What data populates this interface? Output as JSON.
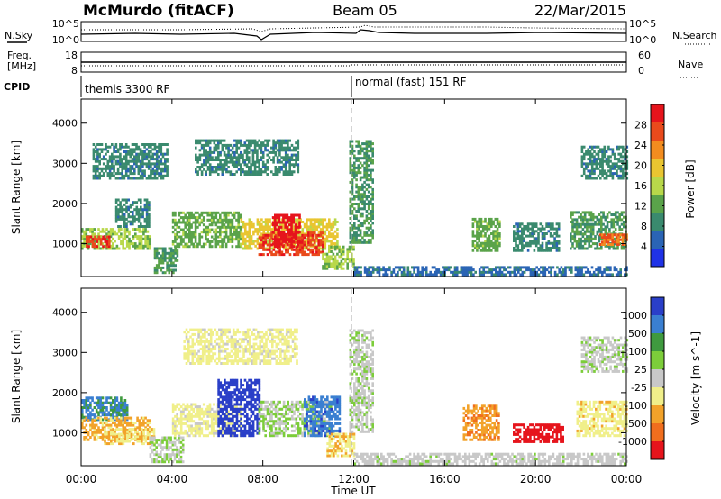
{
  "header": {
    "station": "McMurdo (fitACF)",
    "beam": "Beam 05",
    "date": "22/Mar/2015"
  },
  "noise_panel": {
    "left_label": "N.Sky",
    "right_label": "N.Search",
    "y_top_tick": "10^5",
    "y_bottom_tick": "10^0"
  },
  "freq_panel": {
    "left_label_1": "Freq.",
    "left_label_2": "[MHz]",
    "right_label": "Nave",
    "left_ticks": [
      "18",
      "8"
    ],
    "right_ticks": [
      "60",
      "0"
    ]
  },
  "cpid": {
    "label": "CPID",
    "segments": [
      {
        "name": "themis 3300 RF",
        "start_hour": 0
      },
      {
        "name": "normal (fast) 151 RF",
        "start_hour": 12
      }
    ]
  },
  "colors": {
    "power": [
      "#1f32e6",
      "#2a64b5",
      "#3a8a6e",
      "#5aa34a",
      "#b8d84a",
      "#e9c531",
      "#f28c1f",
      "#e94a1c",
      "#e6141c"
    ],
    "velocity": [
      "#2a3fc8",
      "#3a7fd1",
      "#3f9a3f",
      "#7ccd3a",
      "#c8c8c8",
      "#f0ef8a",
      "#f2a22a",
      "#f06e1e",
      "#e6141c"
    ]
  },
  "chart_data": [
    {
      "type": "heatmap",
      "title": "",
      "xlabel": "Time UT",
      "ylabel": "Slant Range [km]",
      "xlim": [
        0,
        24
      ],
      "ylim": [
        180,
        4600
      ],
      "x_ticks": [
        "00:00",
        "04:00",
        "08:00",
        "12:00",
        "16:00",
        "20:00",
        "00:00"
      ],
      "y_ticks": [
        1000,
        2000,
        3000,
        4000
      ],
      "colorbar": {
        "label": "Power [dB]",
        "ticks": [
          "4",
          "8",
          "12",
          "16",
          "20",
          "24",
          "28"
        ],
        "range": [
          0,
          30
        ]
      },
      "regions": [
        {
          "t": [
            0.0,
            3.0
          ],
          "r": [
            850,
            1350
          ],
          "value": 14
        },
        {
          "t": [
            0.2,
            1.2
          ],
          "r": [
            900,
            1150
          ],
          "value": 26
        },
        {
          "t": [
            1.5,
            3.0
          ],
          "r": [
            1400,
            2100
          ],
          "value": 8
        },
        {
          "t": [
            3.2,
            4.2
          ],
          "r": [
            250,
            900
          ],
          "value": 10
        },
        {
          "t": [
            4.0,
            7.0
          ],
          "r": [
            900,
            1800
          ],
          "value": 12
        },
        {
          "t": [
            7.0,
            11.3
          ],
          "r": [
            850,
            1600
          ],
          "value": 18
        },
        {
          "t": [
            7.8,
            10.6
          ],
          "r": [
            700,
            1300
          ],
          "value": 26
        },
        {
          "t": [
            8.4,
            9.6
          ],
          "r": [
            900,
            1700
          ],
          "value": 29
        },
        {
          "t": [
            10.6,
            12.0
          ],
          "r": [
            350,
            900
          ],
          "value": 14
        },
        {
          "t": [
            0.5,
            3.8
          ],
          "r": [
            2600,
            3500
          ],
          "value": 8
        },
        {
          "t": [
            5.0,
            9.5
          ],
          "r": [
            2700,
            3550
          ],
          "value": 8
        },
        {
          "t": [
            11.8,
            12.8
          ],
          "r": [
            1000,
            3550
          ],
          "value": 10
        },
        {
          "t": [
            17.2,
            18.4
          ],
          "r": [
            800,
            1600
          ],
          "value": 12
        },
        {
          "t": [
            19.0,
            21.0
          ],
          "r": [
            800,
            1500
          ],
          "value": 8
        },
        {
          "t": [
            21.5,
            24.0
          ],
          "r": [
            850,
            1800
          ],
          "value": 10
        },
        {
          "t": [
            22.8,
            24.0
          ],
          "r": [
            950,
            1200
          ],
          "value": 24
        },
        {
          "t": [
            22.0,
            24.0
          ],
          "r": [
            2600,
            3400
          ],
          "value": 8
        },
        {
          "t": [
            12.0,
            24.0
          ],
          "r": [
            200,
            400
          ],
          "value": 6
        }
      ]
    },
    {
      "type": "heatmap",
      "title": "",
      "xlabel": "Time UT",
      "ylabel": "Slant Range [km]",
      "xlim": [
        0,
        24
      ],
      "ylim": [
        180,
        4600
      ],
      "x_ticks": [
        "00:00",
        "04:00",
        "08:00",
        "12:00",
        "16:00",
        "20:00",
        "00:00"
      ],
      "y_ticks": [
        1000,
        2000,
        3000,
        4000
      ],
      "colorbar": {
        "label": "Velocity [m s^-1]",
        "ticks": [
          "1000",
          "500",
          "100",
          "25",
          "-25",
          "-100",
          "-500",
          "-1000"
        ],
        "range": [
          -1000,
          1000
        ]
      },
      "regions": [
        {
          "t": [
            0.0,
            2.0
          ],
          "r": [
            1300,
            1900
          ],
          "value": 600
        },
        {
          "t": [
            0.0,
            3.0
          ],
          "r": [
            800,
            1400
          ],
          "value": -400
        },
        {
          "t": [
            1.0,
            3.2
          ],
          "r": [
            700,
            1100
          ],
          "value": -300
        },
        {
          "t": [
            3.0,
            4.5
          ],
          "r": [
            250,
            900
          ],
          "value": 80
        },
        {
          "t": [
            4.0,
            7.0
          ],
          "r": [
            900,
            1700
          ],
          "value": -200
        },
        {
          "t": [
            6.0,
            7.8
          ],
          "r": [
            900,
            2300
          ],
          "value": 900
        },
        {
          "t": [
            7.8,
            11.0
          ],
          "r": [
            900,
            1800
          ],
          "value": 120
        },
        {
          "t": [
            9.8,
            11.4
          ],
          "r": [
            900,
            1900
          ],
          "value": 700
        },
        {
          "t": [
            10.8,
            12.0
          ],
          "r": [
            400,
            1000
          ],
          "value": -300
        },
        {
          "t": [
            4.5,
            9.5
          ],
          "r": [
            2700,
            3550
          ],
          "value": -200
        },
        {
          "t": [
            11.8,
            12.8
          ],
          "r": [
            1000,
            3550
          ],
          "value": 60
        },
        {
          "t": [
            16.8,
            18.4
          ],
          "r": [
            800,
            1700
          ],
          "value": -500
        },
        {
          "t": [
            19.0,
            21.2
          ],
          "r": [
            750,
            1200
          ],
          "value": -900
        },
        {
          "t": [
            21.8,
            24.0
          ],
          "r": [
            900,
            1800
          ],
          "value": -250
        },
        {
          "t": [
            22.0,
            24.0
          ],
          "r": [
            2500,
            3400
          ],
          "value": 40
        },
        {
          "t": [
            12.0,
            24.0
          ],
          "r": [
            200,
            500
          ],
          "value": 10
        }
      ]
    }
  ]
}
